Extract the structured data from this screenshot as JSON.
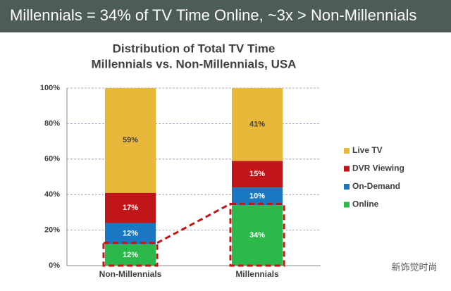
{
  "header": "Millennials = 34% of TV Time Online, ~3x > Non-Millennials",
  "watermark": "新饰觉时尚",
  "chart_data": {
    "type": "stacked-bar",
    "title": "Distribution of Total TV Time",
    "subtitle": "Millennials vs. Non-Millennials, USA",
    "categories": [
      "Non-Millennials",
      "Millennials"
    ],
    "series": [
      {
        "name": "Online",
        "color": "#2db84a",
        "values": [
          12,
          34
        ],
        "value_labels": [
          "12%",
          "34%"
        ]
      },
      {
        "name": "On-Demand",
        "color": "#1a78c2",
        "values": [
          12,
          10
        ],
        "value_labels": [
          "12%",
          "10%"
        ]
      },
      {
        "name": "DVR Viewing",
        "color": "#c0161a",
        "values": [
          17,
          15
        ],
        "value_labels": [
          "17%",
          "15%"
        ]
      },
      {
        "name": "Live TV",
        "color": "#e8b83a",
        "values": [
          59,
          41
        ],
        "value_labels": [
          "59%",
          "41%"
        ]
      }
    ],
    "ylim": [
      0,
      100
    ],
    "yticks": [
      {
        "value": 0,
        "label": "0%"
      },
      {
        "value": 20,
        "label": "20%"
      },
      {
        "value": 40,
        "label": "40%"
      },
      {
        "value": 60,
        "label": "60%"
      },
      {
        "value": 80,
        "label": "80%"
      },
      {
        "value": 100,
        "label": "100%"
      }
    ],
    "grid": true,
    "legend": "right"
  }
}
